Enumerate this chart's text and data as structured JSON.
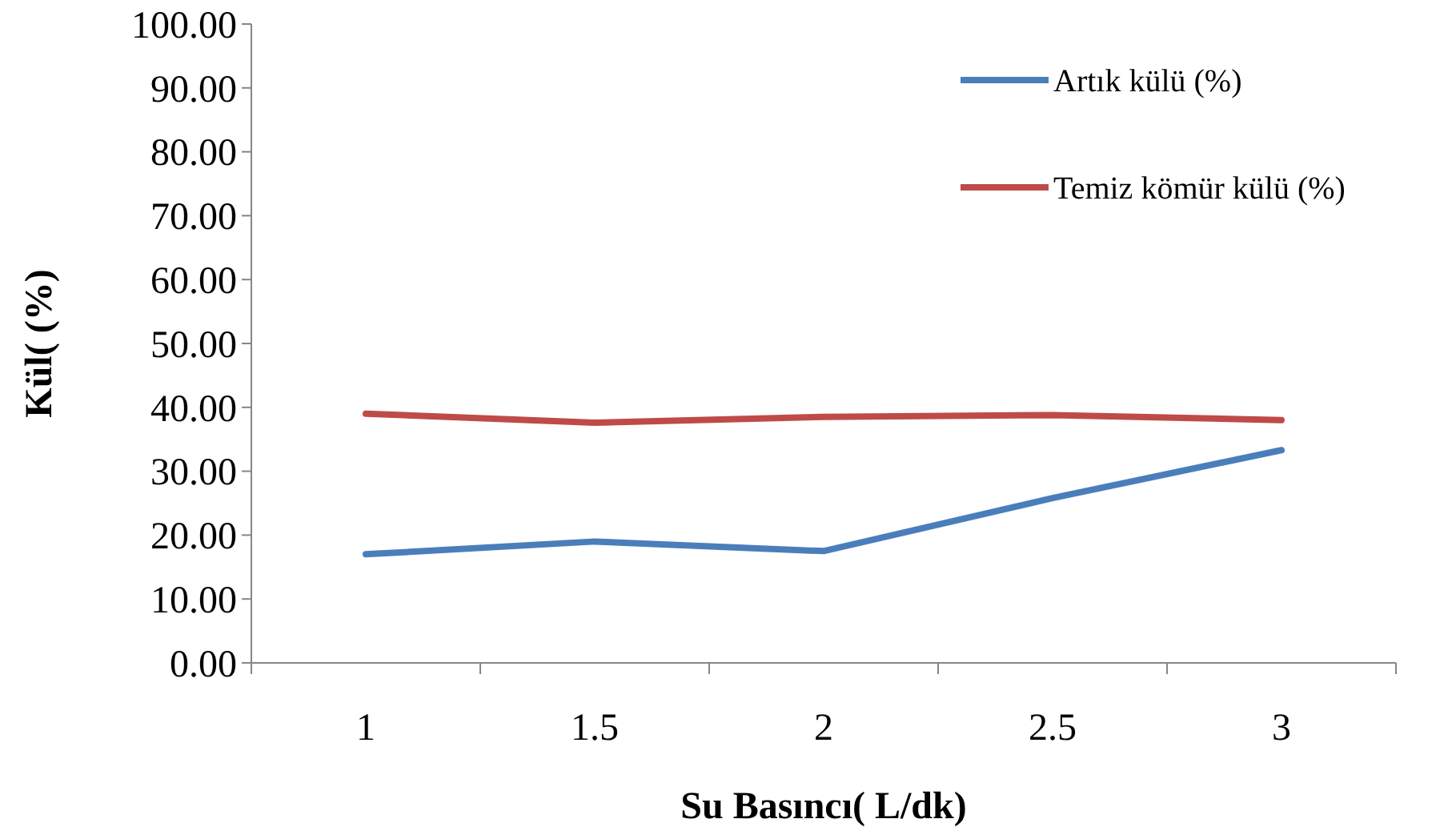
{
  "chart_data": {
    "type": "line",
    "xlabel": "Su Basıncı( L/dk)",
    "ylabel": "Kül( (%)",
    "categories": [
      "1",
      "1.5",
      "2",
      "2.5",
      "3"
    ],
    "series": [
      {
        "name": "Artık külü (%)",
        "color": "#4a7ebb",
        "values": [
          17.0,
          19.0,
          17.5,
          25.8,
          33.3
        ]
      },
      {
        "name": "Temiz kömür külü (%)",
        "color": "#be4b48",
        "values": [
          39.0,
          37.6,
          38.5,
          38.8,
          38.0
        ]
      }
    ],
    "ylim": [
      0,
      100
    ],
    "yticks": [
      {
        "value": 0,
        "label": "0.00"
      },
      {
        "value": 10,
        "label": "10.00"
      },
      {
        "value": 20,
        "label": "20.00"
      },
      {
        "value": 30,
        "label": "30.00"
      },
      {
        "value": 40,
        "label": "40.00"
      },
      {
        "value": 50,
        "label": "50.00"
      },
      {
        "value": 60,
        "label": "60.00"
      },
      {
        "value": 70,
        "label": "70.00"
      },
      {
        "value": 80,
        "label": "80.00"
      },
      {
        "value": 90,
        "label": "90.00"
      },
      {
        "value": 100,
        "label": "100.00"
      }
    ],
    "legend": "top right",
    "grid": false,
    "marker": "none",
    "line_style": "solid"
  }
}
